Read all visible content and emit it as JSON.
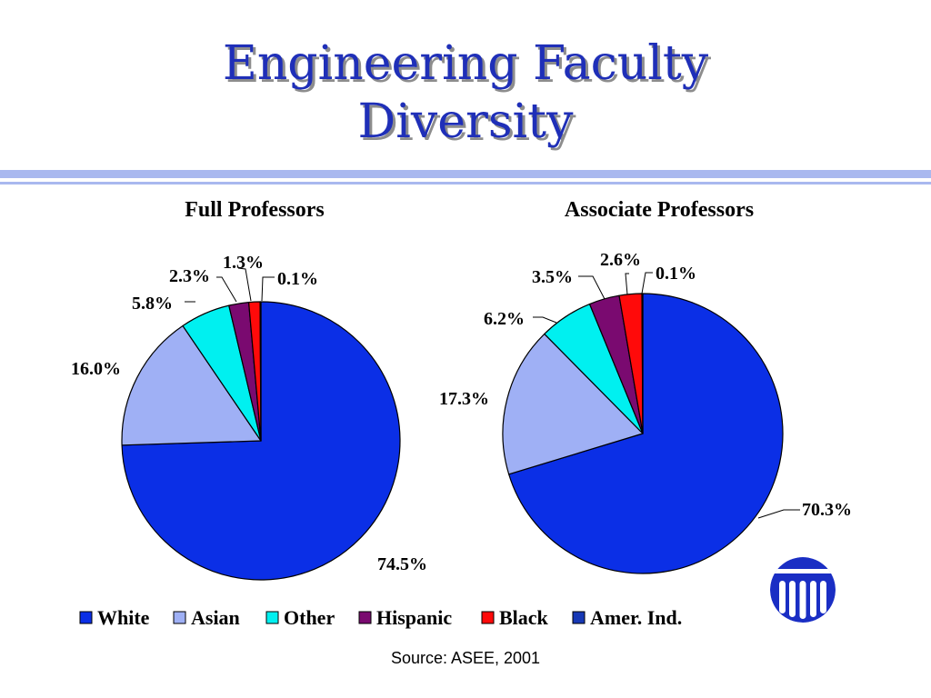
{
  "slide": {
    "title_line1": "Engineering Faculty",
    "title_line2": "Diversity",
    "source": "Source:  ASEE, 2001"
  },
  "colors": {
    "title": "#1f2fb8",
    "rule": "#a9b8ef"
  },
  "logo": {
    "icon": "columns-logo-icon",
    "color": "#1a2ec4"
  },
  "chart_data": [
    {
      "type": "pie",
      "title": "Full Professors",
      "categories": [
        "White",
        "Asian",
        "Other",
        "Hispanic",
        "Black",
        "Amer. Ind."
      ],
      "values": [
        74.5,
        16.0,
        5.8,
        2.3,
        1.3,
        0.1
      ],
      "labels": [
        "74.5%",
        "16.0%",
        "5.8%",
        "2.3%",
        "1.3%",
        "0.1%"
      ]
    },
    {
      "type": "pie",
      "title": "Associate Professors",
      "categories": [
        "White",
        "Asian",
        "Other",
        "Hispanic",
        "Black",
        "Amer. Ind."
      ],
      "values": [
        70.3,
        17.3,
        6.2,
        3.5,
        2.6,
        0.1
      ],
      "labels": [
        "70.3%",
        "17.3%",
        "6.2%",
        "3.5%",
        "2.6%",
        "0.1%"
      ]
    }
  ],
  "legend": {
    "placement": "bottom",
    "items": [
      {
        "label": "White",
        "color": "#0b2fe6"
      },
      {
        "label": "Asian",
        "color": "#9fb0f5"
      },
      {
        "label": "Other",
        "color": "#00f0f0"
      },
      {
        "label": "Hispanic",
        "color": "#7a0a70"
      },
      {
        "label": "Black",
        "color": "#ff0a0a"
      },
      {
        "label": "Amer. Ind.",
        "color": "#1738b5"
      }
    ]
  }
}
